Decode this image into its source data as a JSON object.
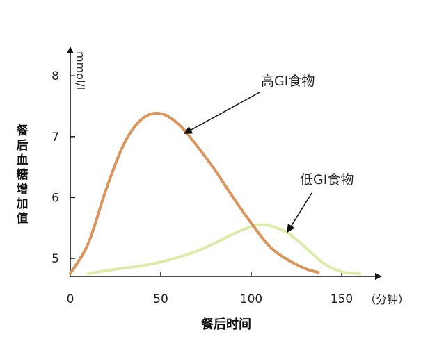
{
  "chart_data": {
    "type": "line",
    "title": "",
    "xlabel": "餐后时间",
    "x_unit": "（分钟）",
    "ylabel": "餐后血糖增加值",
    "y_unit": "mmol/l",
    "x_ticks": [
      "0",
      "50",
      "100",
      "150"
    ],
    "y_ticks": [
      "5",
      "6",
      "7",
      "8"
    ],
    "xlim": [
      0,
      160
    ],
    "ylim": [
      4.7,
      8.7
    ],
    "grid": false,
    "series": [
      {
        "name": "高GI食物",
        "color": "#D9955C",
        "x": [
          0,
          10,
          20,
          30,
          40,
          50,
          60,
          70,
          80,
          90,
          100,
          110,
          120,
          130,
          137
        ],
        "y": [
          4.75,
          5.25,
          6.15,
          6.9,
          7.3,
          7.38,
          7.2,
          6.85,
          6.45,
          6.0,
          5.58,
          5.2,
          4.98,
          4.83,
          4.77
        ]
      },
      {
        "name": "低GI食物",
        "color": "#D9EDA8",
        "x": [
          10,
          20,
          30,
          40,
          50,
          60,
          70,
          80,
          90,
          100,
          105,
          110,
          120,
          130,
          140,
          150,
          160
        ],
        "y": [
          4.75,
          4.8,
          4.84,
          4.88,
          4.94,
          5.02,
          5.12,
          5.25,
          5.4,
          5.52,
          5.55,
          5.54,
          5.42,
          5.18,
          4.92,
          4.78,
          4.75
        ]
      }
    ],
    "annotations": [
      {
        "text": "高GI食物",
        "series": 0,
        "at_x": 63
      },
      {
        "text": "低GI食物",
        "series": 1,
        "at_x": 120
      }
    ]
  }
}
